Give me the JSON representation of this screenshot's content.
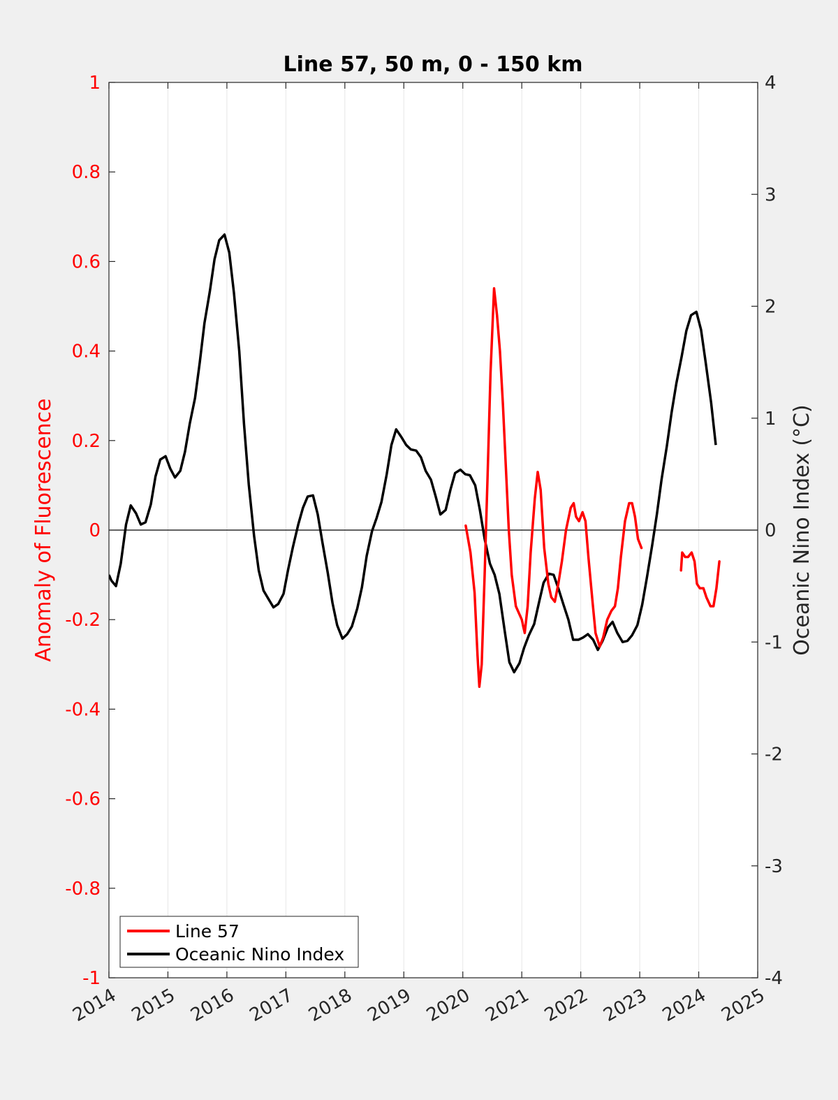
{
  "chart_data": {
    "type": "line",
    "title": "Line 57, 50 m, 0 - 150 km",
    "ylabel_left": "Anomaly of Fluorescence",
    "ylabel_right": "Oceanic Nino Index (°C)",
    "xlim": [
      2014,
      2025
    ],
    "ylim_left": [
      -1,
      1
    ],
    "ylim_right": [
      -4,
      4
    ],
    "x_ticks": [
      "2014",
      "2015",
      "2016",
      "2017",
      "2018",
      "2019",
      "2020",
      "2021",
      "2022",
      "2023",
      "2024",
      "2025"
    ],
    "y_left_ticks": [
      "1",
      "0.8",
      "0.6",
      "0.4",
      "0.2",
      "0",
      "-0.2",
      "-0.4",
      "-0.6",
      "-0.8",
      "-1"
    ],
    "y_right_ticks": [
      "4",
      "3",
      "2",
      "1",
      "0",
      "-1",
      "-2",
      "-3",
      "-4"
    ],
    "grid": "vertical at years",
    "zero_line": true,
    "legend_position": "bottom-left",
    "colors": {
      "line57": "#ff0000",
      "oni": "#000000",
      "left_axis": "#ff0000",
      "right_axis": "#262626"
    },
    "series": [
      {
        "name": "Line 57",
        "axis": "left",
        "segments": [
          [
            [
              2020.05,
              0.01
            ],
            [
              2020.13,
              -0.05
            ],
            [
              2020.2,
              -0.14
            ],
            [
              2020.25,
              -0.28
            ],
            [
              2020.28,
              -0.35
            ],
            [
              2020.32,
              -0.3
            ],
            [
              2020.37,
              -0.1
            ],
            [
              2020.42,
              0.12
            ],
            [
              2020.47,
              0.35
            ],
            [
              2020.53,
              0.54
            ],
            [
              2020.58,
              0.48
            ],
            [
              2020.63,
              0.4
            ],
            [
              2020.68,
              0.28
            ],
            [
              2020.73,
              0.14
            ],
            [
              2020.78,
              0.0
            ],
            [
              2020.83,
              -0.1
            ],
            [
              2020.9,
              -0.17
            ],
            [
              2021.0,
              -0.2
            ],
            [
              2021.05,
              -0.23
            ],
            [
              2021.1,
              -0.17
            ],
            [
              2021.15,
              -0.05
            ],
            [
              2021.22,
              0.07
            ],
            [
              2021.27,
              0.13
            ],
            [
              2021.32,
              0.09
            ],
            [
              2021.38,
              -0.04
            ],
            [
              2021.45,
              -0.12
            ],
            [
              2021.5,
              -0.15
            ],
            [
              2021.56,
              -0.16
            ],
            [
              2021.62,
              -0.12
            ],
            [
              2021.68,
              -0.07
            ],
            [
              2021.75,
              0.0
            ],
            [
              2021.83,
              0.05
            ],
            [
              2021.88,
              0.06
            ],
            [
              2021.92,
              0.03
            ],
            [
              2021.97,
              0.02
            ],
            [
              2022.03,
              0.04
            ],
            [
              2022.08,
              0.02
            ],
            [
              2022.13,
              -0.06
            ],
            [
              2022.2,
              -0.16
            ],
            [
              2022.25,
              -0.23
            ],
            [
              2022.32,
              -0.26
            ],
            [
              2022.38,
              -0.24
            ],
            [
              2022.45,
              -0.2
            ],
            [
              2022.52,
              -0.18
            ],
            [
              2022.58,
              -0.17
            ],
            [
              2022.63,
              -0.13
            ],
            [
              2022.68,
              -0.06
            ],
            [
              2022.75,
              0.02
            ],
            [
              2022.82,
              0.06
            ],
            [
              2022.87,
              0.06
            ],
            [
              2022.92,
              0.03
            ],
            [
              2022.97,
              -0.02
            ],
            [
              2023.03,
              -0.04
            ]
          ],
          [
            [
              2023.7,
              -0.09
            ],
            [
              2023.72,
              -0.05
            ],
            [
              2023.77,
              -0.06
            ],
            [
              2023.82,
              -0.06
            ],
            [
              2023.88,
              -0.05
            ],
            [
              2023.93,
              -0.07
            ],
            [
              2023.97,
              -0.12
            ],
            [
              2024.02,
              -0.13
            ],
            [
              2024.08,
              -0.13
            ],
            [
              2024.13,
              -0.15
            ],
            [
              2024.2,
              -0.17
            ],
            [
              2024.25,
              -0.17
            ],
            [
              2024.3,
              -0.13
            ],
            [
              2024.35,
              -0.07
            ]
          ]
        ]
      },
      {
        "name": "Oceanic Nino Index",
        "axis": "right",
        "points": [
          [
            2014.0,
            -0.4
          ],
          [
            2014.04,
            -0.45
          ],
          [
            2014.12,
            -0.5
          ],
          [
            2014.2,
            -0.3
          ],
          [
            2014.29,
            0.05
          ],
          [
            2014.37,
            0.22
          ],
          [
            2014.46,
            0.15
          ],
          [
            2014.54,
            0.05
          ],
          [
            2014.62,
            0.07
          ],
          [
            2014.71,
            0.23
          ],
          [
            2014.79,
            0.48
          ],
          [
            2014.87,
            0.63
          ],
          [
            2014.96,
            0.66
          ],
          [
            2015.04,
            0.55
          ],
          [
            2015.12,
            0.47
          ],
          [
            2015.21,
            0.53
          ],
          [
            2015.29,
            0.7
          ],
          [
            2015.37,
            0.95
          ],
          [
            2015.46,
            1.18
          ],
          [
            2015.54,
            1.5
          ],
          [
            2015.62,
            1.85
          ],
          [
            2015.71,
            2.13
          ],
          [
            2015.79,
            2.42
          ],
          [
            2015.87,
            2.59
          ],
          [
            2015.96,
            2.64
          ],
          [
            2016.04,
            2.48
          ],
          [
            2016.12,
            2.12
          ],
          [
            2016.21,
            1.6
          ],
          [
            2016.29,
            0.95
          ],
          [
            2016.37,
            0.41
          ],
          [
            2016.46,
            -0.05
          ],
          [
            2016.54,
            -0.36
          ],
          [
            2016.62,
            -0.54
          ],
          [
            2016.71,
            -0.62
          ],
          [
            2016.79,
            -0.69
          ],
          [
            2016.87,
            -0.66
          ],
          [
            2016.96,
            -0.57
          ],
          [
            2017.04,
            -0.35
          ],
          [
            2017.12,
            -0.15
          ],
          [
            2017.21,
            0.05
          ],
          [
            2017.29,
            0.2
          ],
          [
            2017.37,
            0.3
          ],
          [
            2017.46,
            0.31
          ],
          [
            2017.54,
            0.14
          ],
          [
            2017.62,
            -0.11
          ],
          [
            2017.71,
            -0.38
          ],
          [
            2017.79,
            -0.65
          ],
          [
            2017.87,
            -0.85
          ],
          [
            2017.96,
            -0.97
          ],
          [
            2018.04,
            -0.93
          ],
          [
            2018.12,
            -0.86
          ],
          [
            2018.21,
            -0.7
          ],
          [
            2018.29,
            -0.51
          ],
          [
            2018.37,
            -0.23
          ],
          [
            2018.46,
            -0.01
          ],
          [
            2018.54,
            0.11
          ],
          [
            2018.62,
            0.25
          ],
          [
            2018.71,
            0.5
          ],
          [
            2018.79,
            0.76
          ],
          [
            2018.87,
            0.9
          ],
          [
            2018.96,
            0.83
          ],
          [
            2019.04,
            0.76
          ],
          [
            2019.12,
            0.72
          ],
          [
            2019.21,
            0.71
          ],
          [
            2019.29,
            0.65
          ],
          [
            2019.37,
            0.53
          ],
          [
            2019.46,
            0.45
          ],
          [
            2019.54,
            0.3
          ],
          [
            2019.62,
            0.14
          ],
          [
            2019.71,
            0.18
          ],
          [
            2019.79,
            0.36
          ],
          [
            2019.87,
            0.51
          ],
          [
            2019.96,
            0.54
          ],
          [
            2020.04,
            0.5
          ],
          [
            2020.12,
            0.49
          ],
          [
            2020.21,
            0.4
          ],
          [
            2020.29,
            0.18
          ],
          [
            2020.37,
            -0.08
          ],
          [
            2020.46,
            -0.3
          ],
          [
            2020.54,
            -0.4
          ],
          [
            2020.62,
            -0.57
          ],
          [
            2020.71,
            -0.9
          ],
          [
            2020.79,
            -1.18
          ],
          [
            2020.87,
            -1.27
          ],
          [
            2020.96,
            -1.19
          ],
          [
            2021.04,
            -1.05
          ],
          [
            2021.12,
            -0.94
          ],
          [
            2021.21,
            -0.84
          ],
          [
            2021.29,
            -0.65
          ],
          [
            2021.37,
            -0.47
          ],
          [
            2021.46,
            -0.39
          ],
          [
            2021.54,
            -0.4
          ],
          [
            2021.62,
            -0.52
          ],
          [
            2021.71,
            -0.67
          ],
          [
            2021.79,
            -0.8
          ],
          [
            2021.87,
            -0.98
          ],
          [
            2021.96,
            -0.98
          ],
          [
            2022.04,
            -0.96
          ],
          [
            2022.12,
            -0.93
          ],
          [
            2022.21,
            -0.98
          ],
          [
            2022.29,
            -1.07
          ],
          [
            2022.37,
            -0.99
          ],
          [
            2022.46,
            -0.87
          ],
          [
            2022.54,
            -0.82
          ],
          [
            2022.62,
            -0.92
          ],
          [
            2022.71,
            -1.0
          ],
          [
            2022.79,
            -0.99
          ],
          [
            2022.87,
            -0.94
          ],
          [
            2022.96,
            -0.85
          ],
          [
            2023.04,
            -0.67
          ],
          [
            2023.12,
            -0.43
          ],
          [
            2023.21,
            -0.14
          ],
          [
            2023.29,
            0.14
          ],
          [
            2023.37,
            0.45
          ],
          [
            2023.46,
            0.75
          ],
          [
            2023.54,
            1.05
          ],
          [
            2023.62,
            1.31
          ],
          [
            2023.71,
            1.55
          ],
          [
            2023.79,
            1.78
          ],
          [
            2023.87,
            1.92
          ],
          [
            2023.96,
            1.95
          ],
          [
            2024.04,
            1.79
          ],
          [
            2024.12,
            1.49
          ],
          [
            2024.21,
            1.14
          ],
          [
            2024.29,
            0.76
          ]
        ]
      }
    ]
  }
}
